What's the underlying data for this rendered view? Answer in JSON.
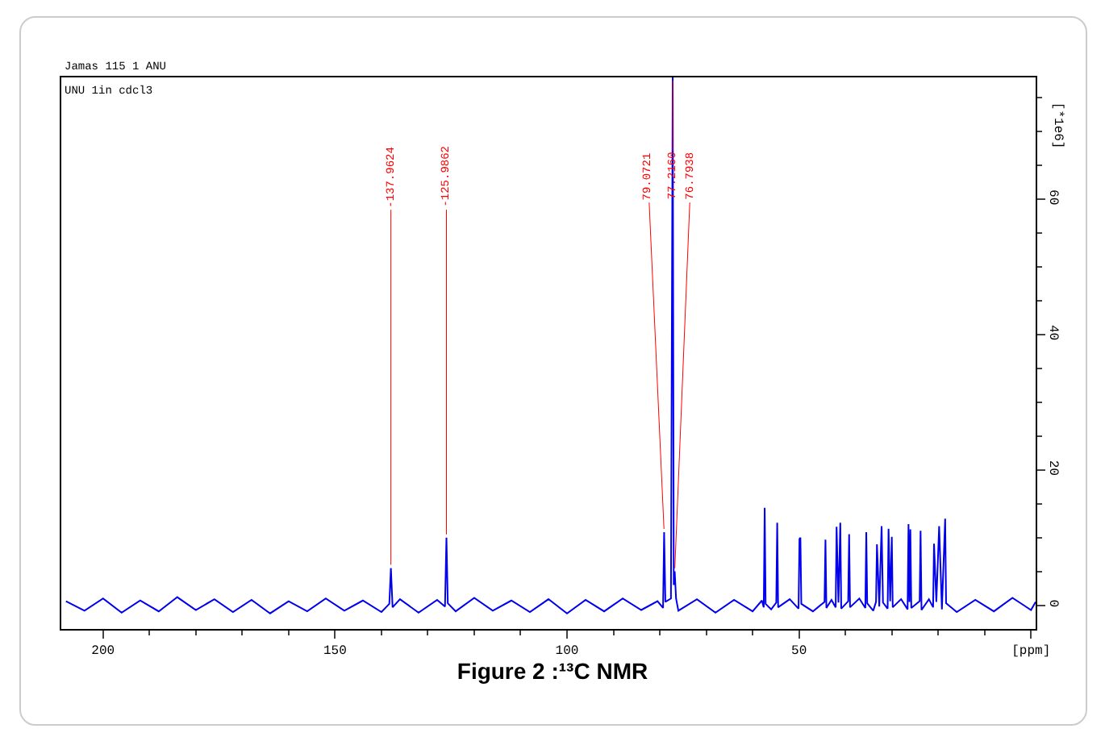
{
  "chart_data": {
    "type": "line",
    "title": "Figure 2 :¹³C NMR",
    "ylabel": "[*1e6]",
    "annotations": [
      "Jamas 115 1 ANU",
      "UNU 1in cdcl3",
      {
        "text": "-137.9624",
        "x": 137.96,
        "y": 5.5
      },
      {
        "text": "-125.9862",
        "x": 125.99,
        "y": 10
      },
      {
        "text": "79.0721",
        "x": 79.07,
        "y": 10.8
      },
      {
        "text": "77.2160",
        "x": 77.22,
        "y": 78
      },
      {
        "text": "76.7938",
        "x": 76.79,
        "y": 5
      }
    ],
    "xlim": [
      209,
      -1
    ],
    "xticks": [
      200,
      150,
      100,
      50,
      {
        "value": 0,
        "label": "[ppm]"
      }
    ],
    "ylim": [
      -3.5,
      78
    ],
    "yticks": [
      0,
      20,
      40,
      60
    ],
    "grid": false,
    "legend": false,
    "marker": "none",
    "line_style": "solid",
    "series": [
      {
        "color": "#0000ee",
        "x": [
          208,
          204,
          200,
          196,
          192,
          188,
          184,
          180,
          176,
          172,
          168,
          164,
          160,
          156,
          152,
          148,
          144,
          140,
          138.3,
          137.96,
          137.6,
          136,
          132,
          128,
          126.3,
          125.99,
          125.7,
          124,
          120,
          116,
          112,
          108,
          104,
          100,
          96,
          92,
          88,
          84,
          80.5,
          79.3,
          79.07,
          78.8,
          77.6,
          77.22,
          77.0,
          76.79,
          76.5,
          76,
          72,
          68,
          64,
          60,
          58,
          57.6,
          57.4,
          57.2,
          56,
          54.9,
          54.7,
          54.5,
          52,
          50.1,
          49.9,
          49.7,
          49.5,
          47,
          44.5,
          44.3,
          44.1,
          43,
          42.1,
          41.9,
          41.5,
          41.1,
          40.9,
          39.4,
          39.2,
          39.0,
          37,
          35.7,
          35.5,
          35.3,
          34,
          33.4,
          33.2,
          32.7,
          32.2,
          31.9,
          30.9,
          30.7,
          30.35,
          30.0,
          29.8,
          28,
          26.6,
          26.4,
          26.2,
          26.0,
          25.8,
          24,
          23.8,
          23.6,
          22,
          21.1,
          20.9,
          20.4,
          19.8,
          19.2,
          18.5,
          18.3,
          16,
          12,
          8,
          4,
          0,
          -1
        ],
        "values": [
          0.6,
          -0.8,
          1.0,
          -1.1,
          0.7,
          -0.9,
          1.2,
          -0.7,
          0.9,
          -1.0,
          0.8,
          -1.2,
          0.6,
          -0.9,
          1.0,
          -0.8,
          0.7,
          -1.0,
          0.2,
          5.5,
          -0.3,
          0.9,
          -1.1,
          0.8,
          -0.2,
          10,
          0.3,
          -0.9,
          1.1,
          -0.8,
          0.7,
          -1.0,
          0.9,
          -1.2,
          0.8,
          -0.9,
          1.0,
          -0.7,
          0.6,
          -0.4,
          10.8,
          0.5,
          1.0,
          78,
          3,
          5,
          1.0,
          -0.8,
          0.9,
          -1.1,
          0.8,
          -0.9,
          0.7,
          -0.3,
          14.4,
          0.2,
          -0.6,
          0.4,
          12.2,
          -0.3,
          0.9,
          -0.5,
          9.8,
          10.0,
          0.2,
          -0.9,
          0.5,
          9.7,
          -0.4,
          0.8,
          -0.3,
          11.6,
          0.4,
          12.2,
          -0.5,
          0.6,
          10.5,
          -0.3,
          1.0,
          -0.4,
          10.8,
          0.3,
          -0.8,
          0.5,
          9.0,
          -0.2,
          11.7,
          0.4,
          -0.5,
          11.3,
          0.6,
          10.1,
          -0.3,
          0.9,
          -0.6,
          12.0,
          0.5,
          11.2,
          -0.4,
          0.6,
          11.0,
          -0.7,
          0.9,
          -0.3,
          9.1,
          0.5,
          11.7,
          -0.6,
          12.8,
          0.3,
          -1.0,
          0.8,
          -0.9,
          1.1,
          -0.7,
          0.5
        ]
      }
    ]
  }
}
